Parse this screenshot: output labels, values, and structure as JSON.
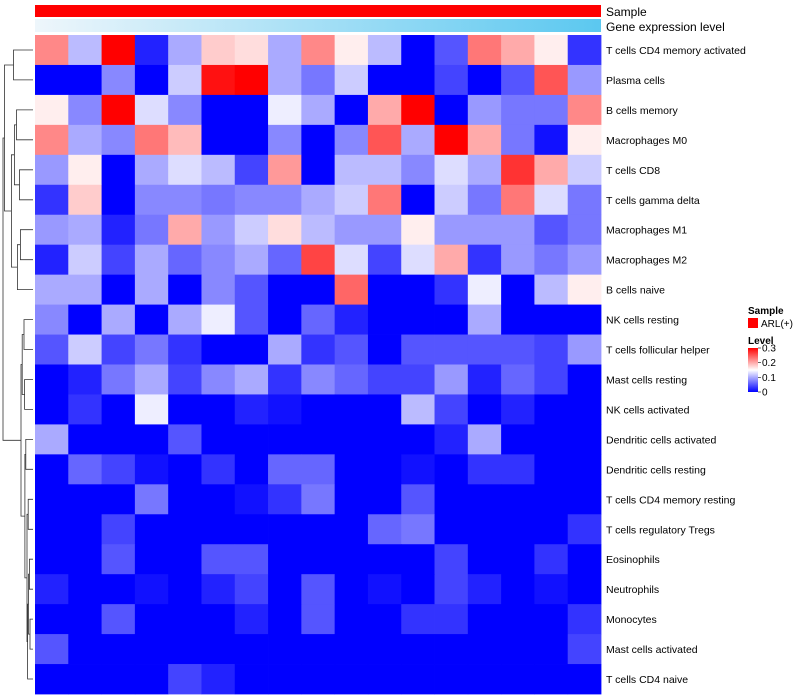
{
  "chart_data": {
    "type": "heatmap",
    "title": "",
    "annotations": [
      {
        "label": "Sample",
        "color": "#ff0000"
      },
      {
        "label": "Gene expression level",
        "gradient": [
          "#eef6fb",
          "#5bc8f0"
        ]
      }
    ],
    "row_labels": [
      "T cells CD4 memory activated",
      "Plasma cells",
      "B cells memory",
      "Macrophages M0",
      "T cells CD8",
      "T cells gamma delta",
      "Macrophages M1",
      "Macrophages M2",
      "B cells naive",
      "NK cells resting",
      "T cells follicular helper",
      "Mast cells resting",
      "NK cells activated",
      "Dendritic cells activated",
      "Dendritic cells resting",
      "T cells CD4 memory resting",
      "T cells regulatory  Tregs",
      "Eosinophils",
      "Neutrophils",
      "Monocytes",
      "Mast cells activated",
      "T cells CD4 naive"
    ],
    "n_columns": 17,
    "values": [
      [
        0.22,
        0.11,
        0.3,
        0.02,
        0.1,
        0.18,
        0.17,
        0.1,
        0.22,
        0.16,
        0.11,
        0.0,
        0.05,
        0.23,
        0.2,
        0.16,
        0.03
      ],
      [
        0.0,
        0.0,
        0.08,
        0.0,
        0.12,
        0.29,
        0.3,
        0.1,
        0.07,
        0.12,
        0.0,
        0.0,
        0.04,
        0.0,
        0.05,
        0.25,
        0.09
      ],
      [
        0.16,
        0.08,
        0.3,
        0.13,
        0.08,
        0.0,
        0.0,
        0.14,
        0.1,
        0.0,
        0.2,
        0.3,
        0.0,
        0.09,
        0.07,
        0.07,
        0.22
      ],
      [
        0.22,
        0.1,
        0.08,
        0.23,
        0.19,
        0.0,
        0.0,
        0.08,
        0.0,
        0.08,
        0.25,
        0.1,
        0.3,
        0.2,
        0.07,
        0.01,
        0.16
      ],
      [
        0.09,
        0.16,
        0.0,
        0.1,
        0.13,
        0.11,
        0.04,
        0.21,
        0.0,
        0.11,
        0.11,
        0.08,
        0.13,
        0.1,
        0.27,
        0.2,
        0.12
      ],
      [
        0.03,
        0.18,
        0.0,
        0.08,
        0.08,
        0.07,
        0.08,
        0.08,
        0.1,
        0.12,
        0.23,
        0.0,
        0.12,
        0.07,
        0.23,
        0.13,
        0.07
      ],
      [
        0.09,
        0.1,
        0.02,
        0.07,
        0.2,
        0.09,
        0.12,
        0.17,
        0.11,
        0.09,
        0.09,
        0.16,
        0.09,
        0.09,
        0.09,
        0.05,
        0.07
      ],
      [
        0.02,
        0.12,
        0.04,
        0.1,
        0.06,
        0.08,
        0.1,
        0.06,
        0.26,
        0.13,
        0.04,
        0.13,
        0.2,
        0.03,
        0.09,
        0.07,
        0.09
      ],
      [
        0.1,
        0.1,
        0.0,
        0.1,
        0.0,
        0.08,
        0.05,
        0.0,
        0.0,
        0.24,
        0.0,
        0.0,
        0.03,
        0.14,
        0.0,
        0.11,
        0.16
      ],
      [
        0.08,
        0.0,
        0.1,
        0.0,
        0.1,
        0.14,
        0.05,
        0.0,
        0.06,
        0.02,
        0.0,
        0.0,
        0.0,
        0.1,
        0.0,
        0.0,
        0.0
      ],
      [
        0.05,
        0.12,
        0.04,
        0.07,
        0.03,
        0.0,
        0.0,
        0.1,
        0.03,
        0.05,
        0.0,
        0.05,
        0.05,
        0.05,
        0.05,
        0.04,
        0.09
      ],
      [
        0.0,
        0.02,
        0.07,
        0.1,
        0.04,
        0.08,
        0.1,
        0.03,
        0.08,
        0.06,
        0.04,
        0.04,
        0.09,
        0.02,
        0.06,
        0.04,
        0.0
      ],
      [
        0.0,
        0.03,
        0.0,
        0.14,
        0.0,
        0.0,
        0.02,
        0.01,
        0.0,
        0.0,
        0.0,
        0.11,
        0.04,
        0.0,
        0.02,
        0.0,
        0.0
      ],
      [
        0.1,
        0.0,
        0.0,
        0.0,
        0.05,
        0.0,
        0.0,
        0.0,
        0.0,
        0.0,
        0.0,
        0.0,
        0.02,
        0.1,
        0.0,
        0.0,
        0.0
      ],
      [
        0.0,
        0.06,
        0.04,
        0.01,
        0.0,
        0.03,
        0.0,
        0.06,
        0.06,
        0.0,
        0.0,
        0.01,
        0.0,
        0.03,
        0.03,
        0.0,
        0.0
      ],
      [
        0.0,
        0.0,
        0.0,
        0.07,
        0.0,
        0.0,
        0.01,
        0.03,
        0.07,
        0.0,
        0.0,
        0.05,
        0.0,
        0.0,
        0.0,
        0.0,
        0.0
      ],
      [
        0.0,
        0.0,
        0.04,
        0.0,
        0.0,
        0.0,
        0.0,
        0.0,
        0.0,
        0.0,
        0.06,
        0.07,
        0.0,
        0.0,
        0.0,
        0.0,
        0.03
      ],
      [
        0.0,
        0.0,
        0.05,
        0.0,
        0.0,
        0.05,
        0.05,
        0.0,
        0.0,
        0.0,
        0.0,
        0.0,
        0.04,
        0.0,
        0.0,
        0.03,
        0.0
      ],
      [
        0.02,
        0.0,
        0.0,
        0.01,
        0.0,
        0.02,
        0.04,
        0.0,
        0.05,
        0.0,
        0.01,
        0.0,
        0.04,
        0.02,
        0.0,
        0.01,
        0.0
      ],
      [
        0.0,
        0.0,
        0.05,
        0.0,
        0.0,
        0.0,
        0.02,
        0.0,
        0.05,
        0.0,
        0.0,
        0.03,
        0.03,
        0.0,
        0.0,
        0.0,
        0.03
      ],
      [
        0.05,
        0.0,
        0.0,
        0.0,
        0.0,
        0.0,
        0.0,
        0.0,
        0.0,
        0.0,
        0.0,
        0.0,
        0.0,
        0.0,
        0.0,
        0.0,
        0.04
      ],
      [
        0.0,
        0.0,
        0.0,
        0.0,
        0.04,
        0.02,
        0.0,
        0.0,
        0.0,
        0.0,
        0.0,
        0.0,
        0.0,
        0.0,
        0.0,
        0.0,
        0.0
      ]
    ],
    "color_scale": {
      "min": 0,
      "mid": 0.15,
      "max": 0.3,
      "low_color": "#0000ff",
      "mid_color": "#ffffff",
      "high_color": "#ff0000"
    },
    "legend": {
      "sample_title": "Sample",
      "sample_item": "ARL(+)",
      "sample_color": "#ff0000",
      "level_title": "Level",
      "ticks": [
        "0.3",
        "0.2",
        "0.1",
        "0"
      ],
      "tick_values": [
        0.3,
        0.2,
        0.1,
        0
      ]
    }
  }
}
